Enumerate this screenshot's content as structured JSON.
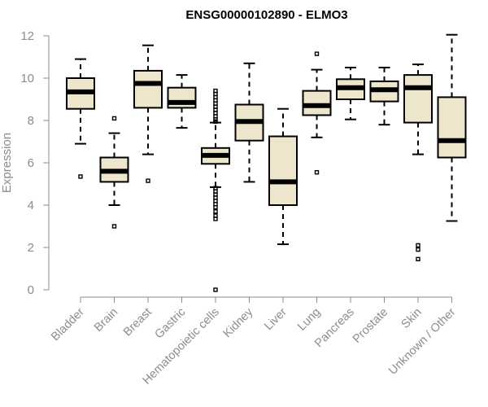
{
  "chart_data": {
    "type": "box",
    "title": "ENSG00000102890 - ELMO3",
    "xlabel": "",
    "ylabel": "Expression",
    "ylim": [
      0,
      12
    ],
    "yticks": [
      0,
      2,
      4,
      6,
      8,
      10,
      12
    ],
    "grid": false,
    "colors": {
      "box_fill": "#ede6cc",
      "stroke": "#000000",
      "axis": "#8c8c8c"
    },
    "categories": [
      "Bladder",
      "Brain",
      "Breast",
      "Gastric",
      "Hematopoietic cells",
      "Kidney",
      "Liver",
      "Lung",
      "Pancreas",
      "Prostate",
      "Skin",
      "Unknown / Other"
    ],
    "boxes": [
      {
        "whisker_low": 6.9,
        "q1": 8.55,
        "median": 9.35,
        "q3": 10.0,
        "whisker_high": 10.9,
        "outliers": [
          5.35
        ]
      },
      {
        "whisker_low": 4.0,
        "q1": 5.1,
        "median": 5.6,
        "q3": 6.25,
        "whisker_high": 7.4,
        "outliers": [
          8.1,
          3.0
        ]
      },
      {
        "whisker_low": 6.4,
        "q1": 8.6,
        "median": 9.75,
        "q3": 10.35,
        "whisker_high": 11.55,
        "outliers": [
          5.15
        ]
      },
      {
        "whisker_low": 7.65,
        "q1": 8.6,
        "median": 8.85,
        "q3": 9.55,
        "whisker_high": 10.15,
        "outliers": []
      },
      {
        "whisker_low": 4.85,
        "q1": 5.95,
        "median": 6.35,
        "q3": 6.7,
        "whisker_high": 7.9,
        "outliers": [
          9.4,
          9.25,
          9.1,
          8.95,
          8.8,
          8.65,
          8.5,
          8.35,
          8.2,
          8.05,
          7.95,
          4.8,
          4.65,
          4.5,
          4.35,
          4.2,
          4.05,
          3.9,
          3.7,
          3.5,
          3.35,
          0.0
        ]
      },
      {
        "whisker_low": 5.1,
        "q1": 7.05,
        "median": 7.95,
        "q3": 8.75,
        "whisker_high": 10.7,
        "outliers": []
      },
      {
        "whisker_low": 2.15,
        "q1": 4.0,
        "median": 5.1,
        "q3": 7.25,
        "whisker_high": 8.55,
        "outliers": []
      },
      {
        "whisker_low": 7.2,
        "q1": 8.25,
        "median": 8.7,
        "q3": 9.4,
        "whisker_high": 10.4,
        "outliers": [
          11.15,
          5.55
        ]
      },
      {
        "whisker_low": 8.05,
        "q1": 9.0,
        "median": 9.55,
        "q3": 9.95,
        "whisker_high": 10.5,
        "outliers": []
      },
      {
        "whisker_low": 7.8,
        "q1": 8.9,
        "median": 9.45,
        "q3": 9.85,
        "whisker_high": 10.5,
        "outliers": []
      },
      {
        "whisker_low": 6.4,
        "q1": 7.9,
        "median": 9.55,
        "q3": 10.15,
        "whisker_high": 10.65,
        "outliers": [
          2.1,
          1.9,
          1.45
        ]
      },
      {
        "whisker_low": 3.25,
        "q1": 6.25,
        "median": 7.05,
        "q3": 9.1,
        "whisker_high": 12.05,
        "outliers": []
      }
    ]
  }
}
